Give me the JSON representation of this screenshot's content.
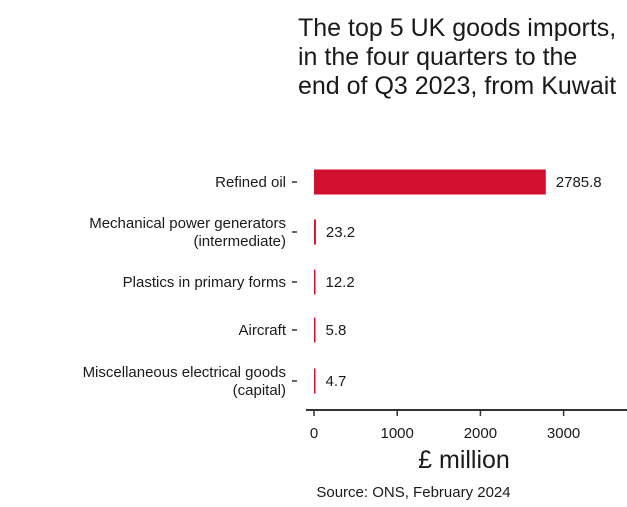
{
  "title": "The top 5 UK goods imports, in the four quarters to the end of Q3 2023, from Kuwait",
  "source": "Source: ONS, February 2024",
  "colors": {
    "bar": "#d0102d",
    "axis": "#333333",
    "text": "#1a1a1a"
  },
  "chart_data": {
    "type": "bar",
    "orientation": "horizontal",
    "title": "The top 5 UK goods imports, in the four quarters to the end of Q3 2023, from Kuwait",
    "xlabel": "£ million",
    "ylabel": "",
    "xlim": [
      0,
      3800
    ],
    "xticks": [
      0,
      1000,
      2000,
      3000
    ],
    "xtick_labels": [
      "0",
      "1000",
      "2000",
      "3000"
    ],
    "grid": false,
    "categories": [
      [
        "Refined oil"
      ],
      [
        "Mechanical power generators",
        "(intermediate)"
      ],
      [
        "Plastics in primary forms"
      ],
      [
        "Aircraft"
      ],
      [
        "Miscellaneous electrical goods",
        "(capital)"
      ]
    ],
    "values": [
      2785.8,
      23.2,
      12.2,
      5.8,
      4.7
    ],
    "value_labels": [
      "2785.8",
      "23.2",
      "12.2",
      "5.8",
      "4.7"
    ]
  }
}
